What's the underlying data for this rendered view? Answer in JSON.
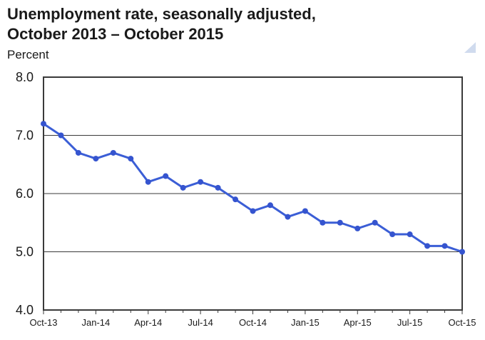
{
  "header": {
    "title_line1": "Unemployment rate, seasonally adjusted,",
    "title_line2": "October 2013 – October 2015",
    "axis_unit_label": "Percent"
  },
  "colors": {
    "line": "#3b5ed6",
    "marker": "#3554cf",
    "grid": "#3a3a3a",
    "text": "#1a1a1a",
    "corner_triangle": "#a9bde0"
  },
  "chart_data": {
    "type": "line",
    "title": "Unemployment rate, seasonally adjusted, October 2013 – October 2015",
    "xlabel": "",
    "ylabel": "Percent",
    "series_name": "Unemployment rate (percent)",
    "categories": [
      "Oct-13",
      "Nov-13",
      "Dec-13",
      "Jan-14",
      "Feb-14",
      "Mar-14",
      "Apr-14",
      "May-14",
      "Jun-14",
      "Jul-14",
      "Aug-14",
      "Sep-14",
      "Oct-14",
      "Nov-14",
      "Dec-14",
      "Jan-15",
      "Feb-15",
      "Mar-15",
      "Apr-15",
      "May-15",
      "Jun-15",
      "Jul-15",
      "Aug-15",
      "Sep-15",
      "Oct-15"
    ],
    "values": [
      7.2,
      7.0,
      6.7,
      6.6,
      6.7,
      6.6,
      6.2,
      6.3,
      6.1,
      6.2,
      6.1,
      5.9,
      5.7,
      5.8,
      5.6,
      5.7,
      5.5,
      5.5,
      5.4,
      5.5,
      5.3,
      5.3,
      5.1,
      5.1,
      5.0
    ],
    "ylim": [
      4.0,
      8.0
    ],
    "ytick_values": [
      8.0,
      7.0,
      6.0,
      5.0,
      4.0
    ],
    "ytick_labels": [
      "8.0",
      "7.0",
      "6.0",
      "5.0",
      "4.0"
    ],
    "xtick_every": 3,
    "xtick_labels": [
      "Oct-13",
      "Jan-14",
      "Apr-14",
      "Jul-14",
      "Oct-14",
      "Jan-15",
      "Apr-15",
      "Jul-15",
      "Oct-15"
    ],
    "grid": "horizontal",
    "legend": "none",
    "marker": "circle"
  }
}
